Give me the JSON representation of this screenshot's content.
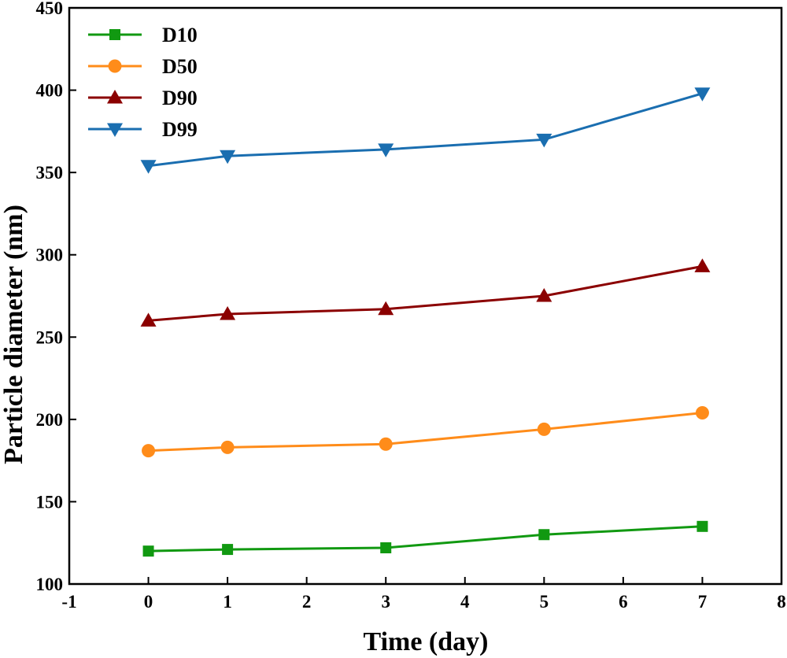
{
  "chart_data": {
    "type": "line",
    "title": "",
    "xlabel": "Time (day)",
    "ylabel": "Particle diameter (nm)",
    "xlim": [
      -1,
      8
    ],
    "ylim": [
      100,
      450
    ],
    "xticks": [
      -1,
      0,
      1,
      2,
      3,
      4,
      5,
      6,
      7,
      8
    ],
    "yticks": [
      100,
      150,
      200,
      250,
      300,
      350,
      400,
      450
    ],
    "grid": false,
    "legend_position": "top-left",
    "x": [
      0,
      1,
      3,
      5,
      7
    ],
    "series": [
      {
        "name": "D10",
        "color": "#119911",
        "marker": "square",
        "values": [
          120,
          121,
          122,
          130,
          135
        ]
      },
      {
        "name": "D50",
        "color": "#ff8c1a",
        "marker": "circle",
        "values": [
          181,
          183,
          185,
          194,
          204
        ]
      },
      {
        "name": "D90",
        "color": "#8b0000",
        "marker": "triangle-up",
        "values": [
          260,
          264,
          267,
          275,
          293
        ]
      },
      {
        "name": "D99",
        "color": "#1a6eb0",
        "marker": "triangle-down",
        "values": [
          354,
          360,
          364,
          370,
          398
        ]
      }
    ]
  }
}
